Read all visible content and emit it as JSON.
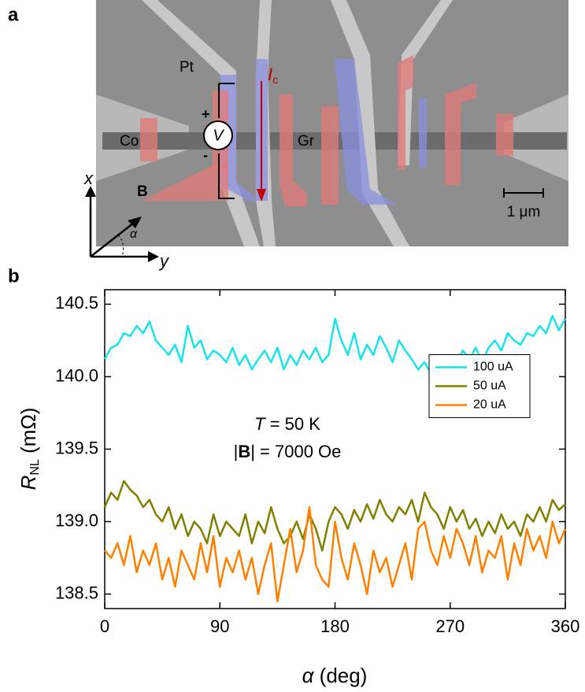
{
  "panel_labels": [
    "a",
    "b"
  ],
  "image": {
    "pt_label": "Pt",
    "current_label": "I",
    "current_sub": "c",
    "co_label": "Co",
    "gr_label": "Gr",
    "voltmeter": "V",
    "plus": "+",
    "minus": "-",
    "field_label": "B",
    "axis_x": "x",
    "axis_y": "y",
    "angle": "α",
    "scale_bar": "1 μm"
  },
  "chart_data": {
    "type": "line",
    "x_label": [
      "α",
      " (deg)"
    ],
    "y_label": [
      "R",
      "NL",
      " (mΩ)"
    ],
    "annotations": [
      [
        "T",
        " = 50 K"
      ],
      [
        "|",
        "B",
        "| = 7000 Oe"
      ]
    ],
    "xlim": [
      0,
      360
    ],
    "xticks": [
      0,
      90,
      180,
      270,
      360
    ],
    "ylim": [
      138.4,
      140.6
    ],
    "yticks": [
      138.5,
      {
        "value": 139,
        "label": "139.0"
      },
      139.5,
      {
        "value": 140,
        "label": "140.0"
      },
      140.5
    ],
    "legend_loc": "center right",
    "x": [
      0,
      5,
      10,
      15,
      20,
      25,
      30,
      35,
      40,
      45,
      50,
      55,
      60,
      65,
      70,
      75,
      80,
      85,
      90,
      95,
      100,
      105,
      110,
      115,
      120,
      125,
      130,
      135,
      140,
      145,
      150,
      155,
      160,
      165,
      170,
      175,
      180,
      185,
      190,
      195,
      200,
      205,
      210,
      215,
      220,
      225,
      230,
      235,
      240,
      245,
      250,
      255,
      260,
      265,
      270,
      275,
      280,
      285,
      290,
      295,
      300,
      305,
      310,
      315,
      320,
      325,
      330,
      335,
      340,
      345,
      350,
      355,
      360
    ],
    "series": [
      {
        "name": "100 uA",
        "color": "#19e3ea",
        "values": [
          140.12,
          140.2,
          140.22,
          140.3,
          140.28,
          140.35,
          140.3,
          140.38,
          140.25,
          140.2,
          140.15,
          140.22,
          140.1,
          140.35,
          140.2,
          140.25,
          140.12,
          140.18,
          140.15,
          140.1,
          140.2,
          140.08,
          140.15,
          140.05,
          140.12,
          140.18,
          140.1,
          140.2,
          140.05,
          140.15,
          140.08,
          140.18,
          140.12,
          140.2,
          140.1,
          140.15,
          140.4,
          140.25,
          140.15,
          140.3,
          140.12,
          140.22,
          140.15,
          140.28,
          140.2,
          140.1,
          140.25,
          140.18,
          140.12,
          140.05,
          140.1,
          140.02,
          140.12,
          140.05,
          140.15,
          140.1,
          140.18,
          140.12,
          140.2,
          140.1,
          140.2,
          140.25,
          140.18,
          140.3,
          140.25,
          140.22,
          140.3,
          140.28,
          140.35,
          140.3,
          140.42,
          140.32,
          140.4
        ]
      },
      {
        "name": "50 uA",
        "color": "#808000",
        "values": [
          139.1,
          139.2,
          139.15,
          139.28,
          139.22,
          139.18,
          139.1,
          139.15,
          139.05,
          139.0,
          139.1,
          138.95,
          139.05,
          138.9,
          139.0,
          138.95,
          138.85,
          139.05,
          138.9,
          139.0,
          138.95,
          138.9,
          139.05,
          138.85,
          139.0,
          138.92,
          139.1,
          138.95,
          138.85,
          138.9,
          139.0,
          138.88,
          139.05,
          138.95,
          138.8,
          139.0,
          139.1,
          139.05,
          138.95,
          139.08,
          139.0,
          139.12,
          139.02,
          139.15,
          139.05,
          139.0,
          139.1,
          139.05,
          139.15,
          139.0,
          139.2,
          139.1,
          139.05,
          138.95,
          139.1,
          139.0,
          139.08,
          138.95,
          139.02,
          138.9,
          139.0,
          138.92,
          139.05,
          138.95,
          139.0,
          138.9,
          139.05,
          139.0,
          139.1,
          139.0,
          139.15,
          139.08,
          139.12
        ]
      },
      {
        "name": "20 uA",
        "color": "#ff8000",
        "values": [
          138.8,
          138.75,
          138.85,
          138.7,
          138.9,
          138.65,
          138.8,
          138.7,
          138.85,
          138.6,
          138.75,
          138.55,
          138.8,
          138.7,
          138.6,
          138.85,
          138.65,
          138.9,
          138.55,
          138.75,
          138.65,
          138.8,
          138.6,
          138.75,
          138.5,
          138.7,
          138.85,
          138.45,
          138.7,
          138.95,
          138.65,
          138.8,
          139.1,
          138.7,
          138.6,
          138.55,
          139.0,
          138.75,
          138.6,
          138.85,
          138.7,
          138.5,
          138.8,
          138.65,
          138.75,
          138.55,
          138.7,
          138.85,
          138.6,
          138.95,
          139.0,
          138.8,
          138.7,
          138.9,
          138.75,
          138.95,
          138.85,
          138.7,
          138.9,
          138.65,
          138.8,
          138.75,
          138.9,
          138.6,
          138.85,
          138.7,
          138.95,
          138.8,
          138.9,
          138.75,
          139.0,
          138.85,
          138.95
        ]
      }
    ]
  }
}
